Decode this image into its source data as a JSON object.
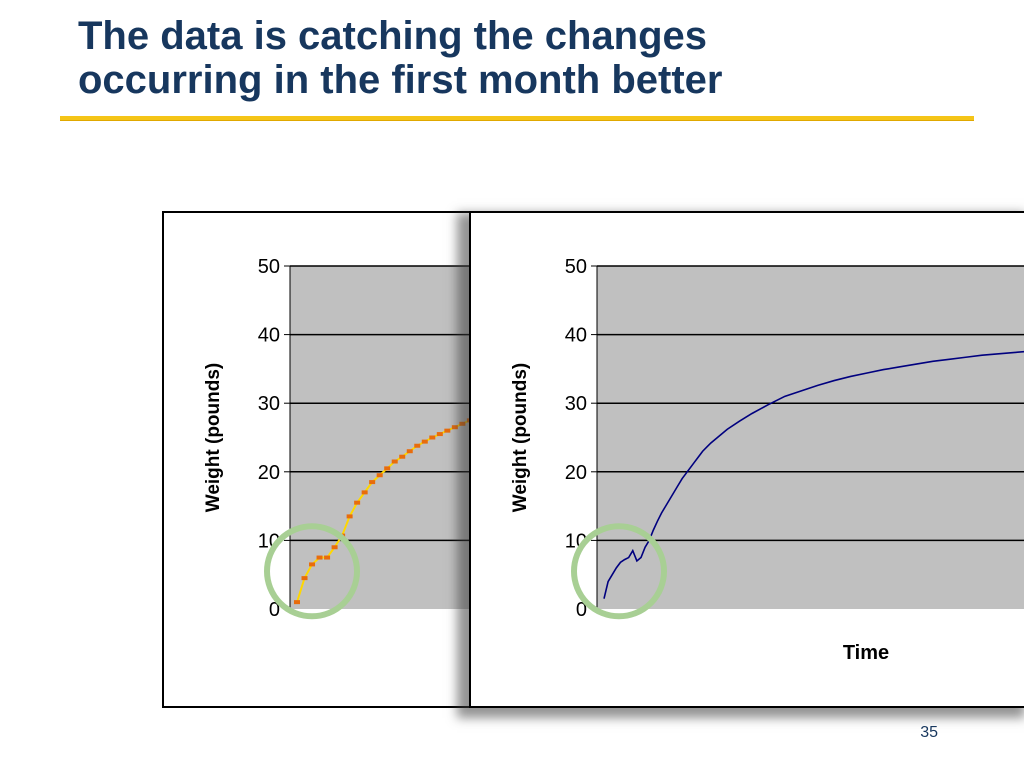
{
  "slide": {
    "title_line1": "The data is catching the changes",
    "title_line2": "occurring in the first month better",
    "page_number": "35",
    "accent_color": "#f5c518",
    "title_color": "#17375e"
  },
  "chart_data": [
    {
      "type": "line",
      "id": "left",
      "ylabel": "Weight (pounds)",
      "xlabel": "",
      "ylim": [
        0,
        50
      ],
      "yticks": [
        0,
        10,
        20,
        30,
        40,
        50
      ],
      "grid": true,
      "plot_background": "#c0c0c0",
      "series": [
        {
          "color": "#ffd700",
          "marker_color": "#e86c0c",
          "x": [
            0,
            1,
            2,
            3,
            4,
            5,
            6,
            7,
            8,
            9,
            10,
            11,
            12,
            13,
            14,
            15,
            16,
            17,
            18,
            19,
            20,
            21,
            22,
            23,
            24
          ],
          "values": [
            1.0,
            4.5,
            6.5,
            7.5,
            7.5,
            9.0,
            10.7,
            13.5,
            15.5,
            17.0,
            18.5,
            19.5,
            20.5,
            21.5,
            22.2,
            23.0,
            23.8,
            24.4,
            25.0,
            25.5,
            26.0,
            26.5,
            27.0,
            27.5,
            27.8
          ]
        }
      ],
      "annotation": "circle around first month"
    },
    {
      "type": "line",
      "id": "right",
      "ylabel": "Weight (pounds)",
      "xlabel": "Time",
      "ylim": [
        0,
        50
      ],
      "yticks": [
        0,
        10,
        20,
        30,
        40,
        50
      ],
      "grid": true,
      "plot_background": "#c0c0c0",
      "series": [
        {
          "color": "#00007f",
          "x": [
            0,
            1,
            2,
            3,
            4,
            5,
            6,
            7,
            8,
            9,
            10,
            11,
            12,
            13,
            14,
            15,
            16,
            17,
            18,
            19,
            20,
            21,
            22,
            23,
            24,
            25,
            26,
            28,
            30,
            33,
            36,
            40,
            44,
            48,
            52,
            56,
            60,
            64,
            68,
            72,
            76,
            80,
            84,
            88,
            92,
            96,
            100,
            104
          ],
          "values": [
            1.5,
            4.0,
            5.0,
            6.0,
            6.8,
            7.2,
            7.5,
            8.5,
            7.0,
            7.5,
            9.0,
            10.0,
            11.5,
            12.8,
            14.0,
            15.0,
            16.0,
            17.0,
            18.0,
            19.0,
            19.8,
            20.6,
            21.4,
            22.2,
            23.0,
            23.6,
            24.2,
            25.2,
            26.2,
            27.4,
            28.5,
            29.8,
            31.0,
            31.8,
            32.6,
            33.3,
            33.9,
            34.4,
            34.9,
            35.3,
            35.7,
            36.1,
            36.4,
            36.7,
            37.0,
            37.2,
            37.4,
            37.6
          ]
        }
      ],
      "annotation": "circle around first month"
    }
  ]
}
